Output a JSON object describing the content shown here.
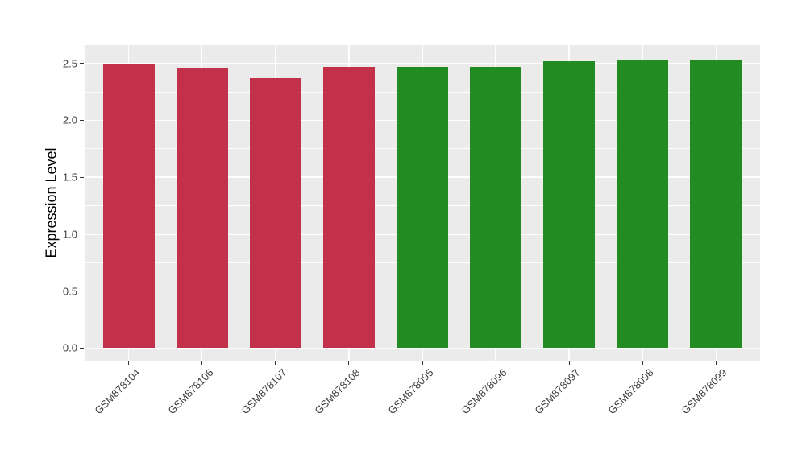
{
  "chart_data": {
    "type": "bar",
    "title": "",
    "ylabel": "Expression Level",
    "xlabel": "",
    "categories": [
      "GSM878104",
      "GSM878106",
      "GSM878107",
      "GSM878108",
      "GSM878095",
      "GSM878096",
      "GSM878097",
      "GSM878098",
      "GSM878099"
    ],
    "values": [
      2.5,
      2.46,
      2.37,
      2.47,
      2.47,
      2.47,
      2.52,
      2.53,
      2.53
    ],
    "bar_colors": [
      "#C33049",
      "#C33049",
      "#C33049",
      "#C33049",
      "#228B22",
      "#228B22",
      "#228B22",
      "#228B22",
      "#228B22"
    ],
    "y_tick_labels": [
      "0.0",
      "0.5",
      "1.0",
      "1.5",
      "2.0",
      "2.5"
    ],
    "y_tick_values": [
      0.0,
      0.5,
      1.0,
      1.5,
      2.0,
      2.5
    ],
    "y_minor_tick_values": [
      0.25,
      0.75,
      1.25,
      1.75,
      2.25
    ],
    "ylim": [
      -0.11,
      2.66
    ],
    "grid": true,
    "legend_position": "none",
    "panel_background": "#EBEBEB",
    "gridline_color": "#FFFFFF",
    "accent_red": "#C33049",
    "accent_green": "#228B22"
  }
}
